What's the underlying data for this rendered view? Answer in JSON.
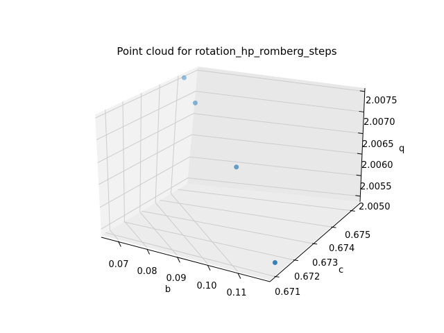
{
  "chart_data": {
    "type": "scatter",
    "projection": "3d",
    "title": "Point cloud for rotation_hp_romberg_steps",
    "xlabel": "b",
    "ylabel": "c",
    "zlabel": "q",
    "x_ticks": [
      "0.07",
      "0.08",
      "0.09",
      "0.10",
      "0.11"
    ],
    "y_ticks": [
      "0.671",
      "0.672",
      "0.673",
      "0.674",
      "0.675"
    ],
    "z_ticks": [
      "2.0050",
      "2.0055",
      "2.0060",
      "2.0065",
      "2.0070",
      "2.0075"
    ],
    "points": [
      {
        "b": 0.065,
        "c": 0.6753,
        "q": 2.0074
      },
      {
        "b": 0.072,
        "c": 0.6747,
        "q": 2.0071
      },
      {
        "b": 0.092,
        "c": 0.6735,
        "q": 2.0063
      },
      {
        "b": 0.115,
        "c": 0.6716,
        "q": 2.005
      }
    ],
    "marker_color": "#1f77b4",
    "grid": true,
    "pane_color": "#f2f2f2",
    "grid_color": "#cccccc"
  }
}
